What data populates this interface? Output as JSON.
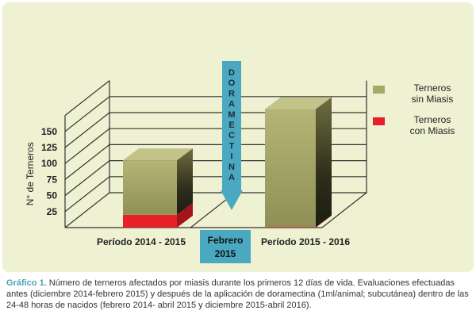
{
  "chart_data": {
    "type": "bar",
    "categories": [
      "Período 2014 - 2015",
      "Período 2015 - 2016"
    ],
    "series": [
      {
        "name": "Terneros con Miasis",
        "values": [
          20,
          1
        ]
      },
      {
        "name": "Terneros sin Miasis",
        "values": [
          85,
          184
        ]
      }
    ],
    "stacked": true,
    "three_d": true,
    "ylabel": "N° de Terneros",
    "y_ticks": [
      25,
      50,
      75,
      100,
      125,
      150
    ],
    "ylim": [
      0,
      175
    ],
    "legend": {
      "placement": "right",
      "entries": [
        {
          "line1": "Terneros",
          "line2": "sin Miasis",
          "color": "#a7a868"
        },
        {
          "line1": "Terneros",
          "line2": "con Miasis",
          "color": "#e8202a"
        }
      ]
    },
    "annotation": {
      "arrow_text": "DORAMECTINA",
      "box_line1": "Febrero",
      "box_line2": "2015"
    },
    "colors": {
      "sin_miasis": "#a7a868",
      "con_miasis": "#e8202a",
      "arrow": "#4aa9c0",
      "background": "#eef1d2"
    }
  },
  "caption": {
    "label": "Gráfico 1.",
    "text": " Número de terneros afectados por miasis durante los primeros 12 días de vida. Evaluaciones efectuadas antes (diciembre 2014-febrero 2015) y después de la aplicación de doramectina (1ml/animal; subcutánea) dentro de las 24-48 horas de nacidos (febrero 2014- abril 2015 y diciembre 2015-abril 2016)."
  }
}
